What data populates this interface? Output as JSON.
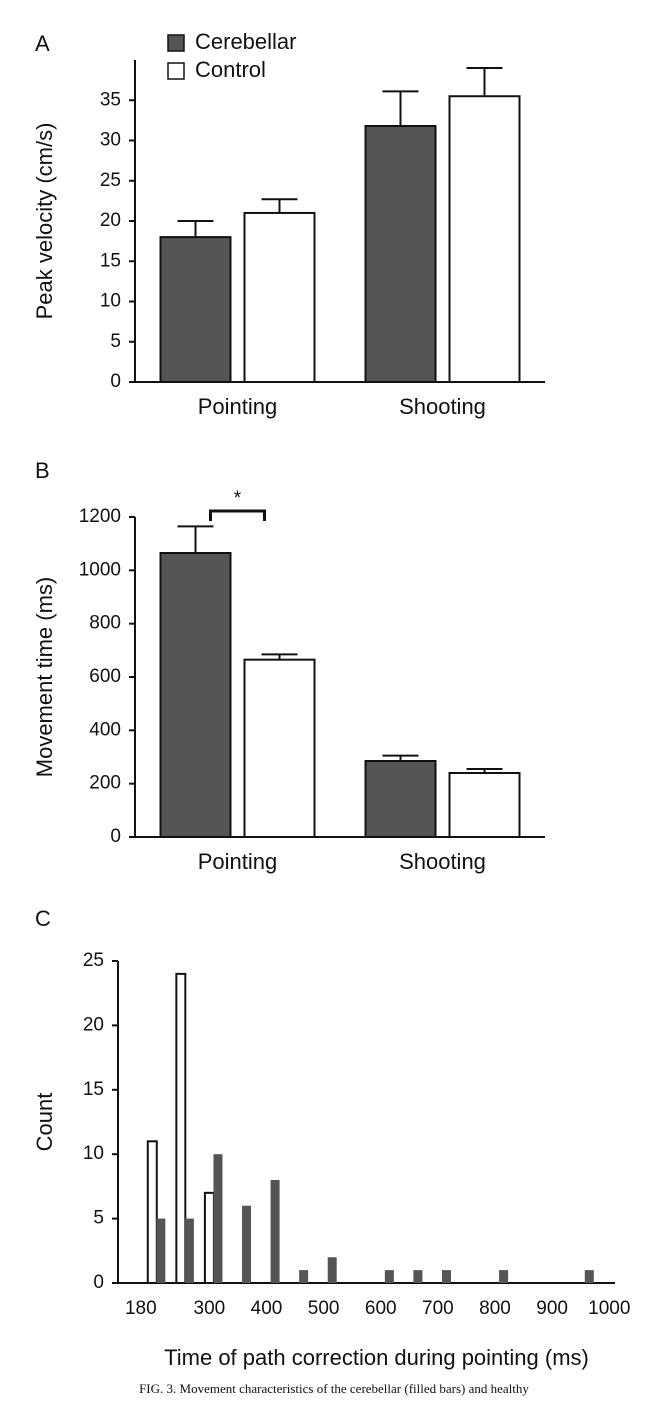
{
  "chart_data": [
    {
      "panel": "A",
      "type": "bar",
      "ylabel": "Peak velocity (cm/s)",
      "categories": [
        "Pointing",
        "Shooting"
      ],
      "ylim": [
        0,
        40
      ],
      "yticks": [
        0,
        5,
        10,
        15,
        20,
        25,
        30,
        35
      ],
      "legend": "upper left",
      "series": [
        {
          "name": "Cerebellar",
          "color": "#555555",
          "values": [
            18,
            31.8
          ],
          "errors": [
            2,
            4.3
          ]
        },
        {
          "name": "Control",
          "color": "#ffffff",
          "values": [
            21,
            35.5
          ],
          "errors": [
            1.7,
            3.5
          ]
        }
      ]
    },
    {
      "panel": "B",
      "type": "bar",
      "ylabel": "Movement time (ms)",
      "categories": [
        "Pointing",
        "Shooting"
      ],
      "ylim": [
        0,
        1200
      ],
      "yticks": [
        0,
        200,
        400,
        600,
        800,
        1000,
        1200
      ],
      "annotation": "*",
      "series": [
        {
          "color": "#555555",
          "values": [
            1065,
            285
          ],
          "errors": [
            100,
            20
          ]
        },
        {
          "color": "#ffffff",
          "values": [
            665,
            240
          ],
          "errors": [
            20,
            15
          ]
        }
      ]
    },
    {
      "panel": "C",
      "type": "bar",
      "ylabel": "Count",
      "xlabel": "Time of path correction during pointing (ms)",
      "xlim": [
        140,
        1010
      ],
      "xticks": [
        180,
        300,
        400,
        500,
        600,
        700,
        800,
        900,
        1000
      ],
      "ylim": [
        0,
        25
      ],
      "yticks": [
        0,
        5,
        10,
        15,
        20,
        25
      ],
      "series": [
        {
          "color": "#ffffff",
          "x": [
            200,
            250,
            300
          ],
          "values": [
            11,
            24,
            7
          ]
        },
        {
          "color": "#555555",
          "x": [
            215,
            265,
            315,
            365,
            415,
            465,
            515,
            615,
            665,
            715,
            815,
            965
          ],
          "values": [
            5,
            5,
            10,
            6,
            8,
            1,
            2,
            1,
            1,
            1,
            1,
            1
          ]
        }
      ]
    }
  ],
  "caption": "FIG. 3.    Movement characteristics of the cerebellar (filled bars) and healthy"
}
